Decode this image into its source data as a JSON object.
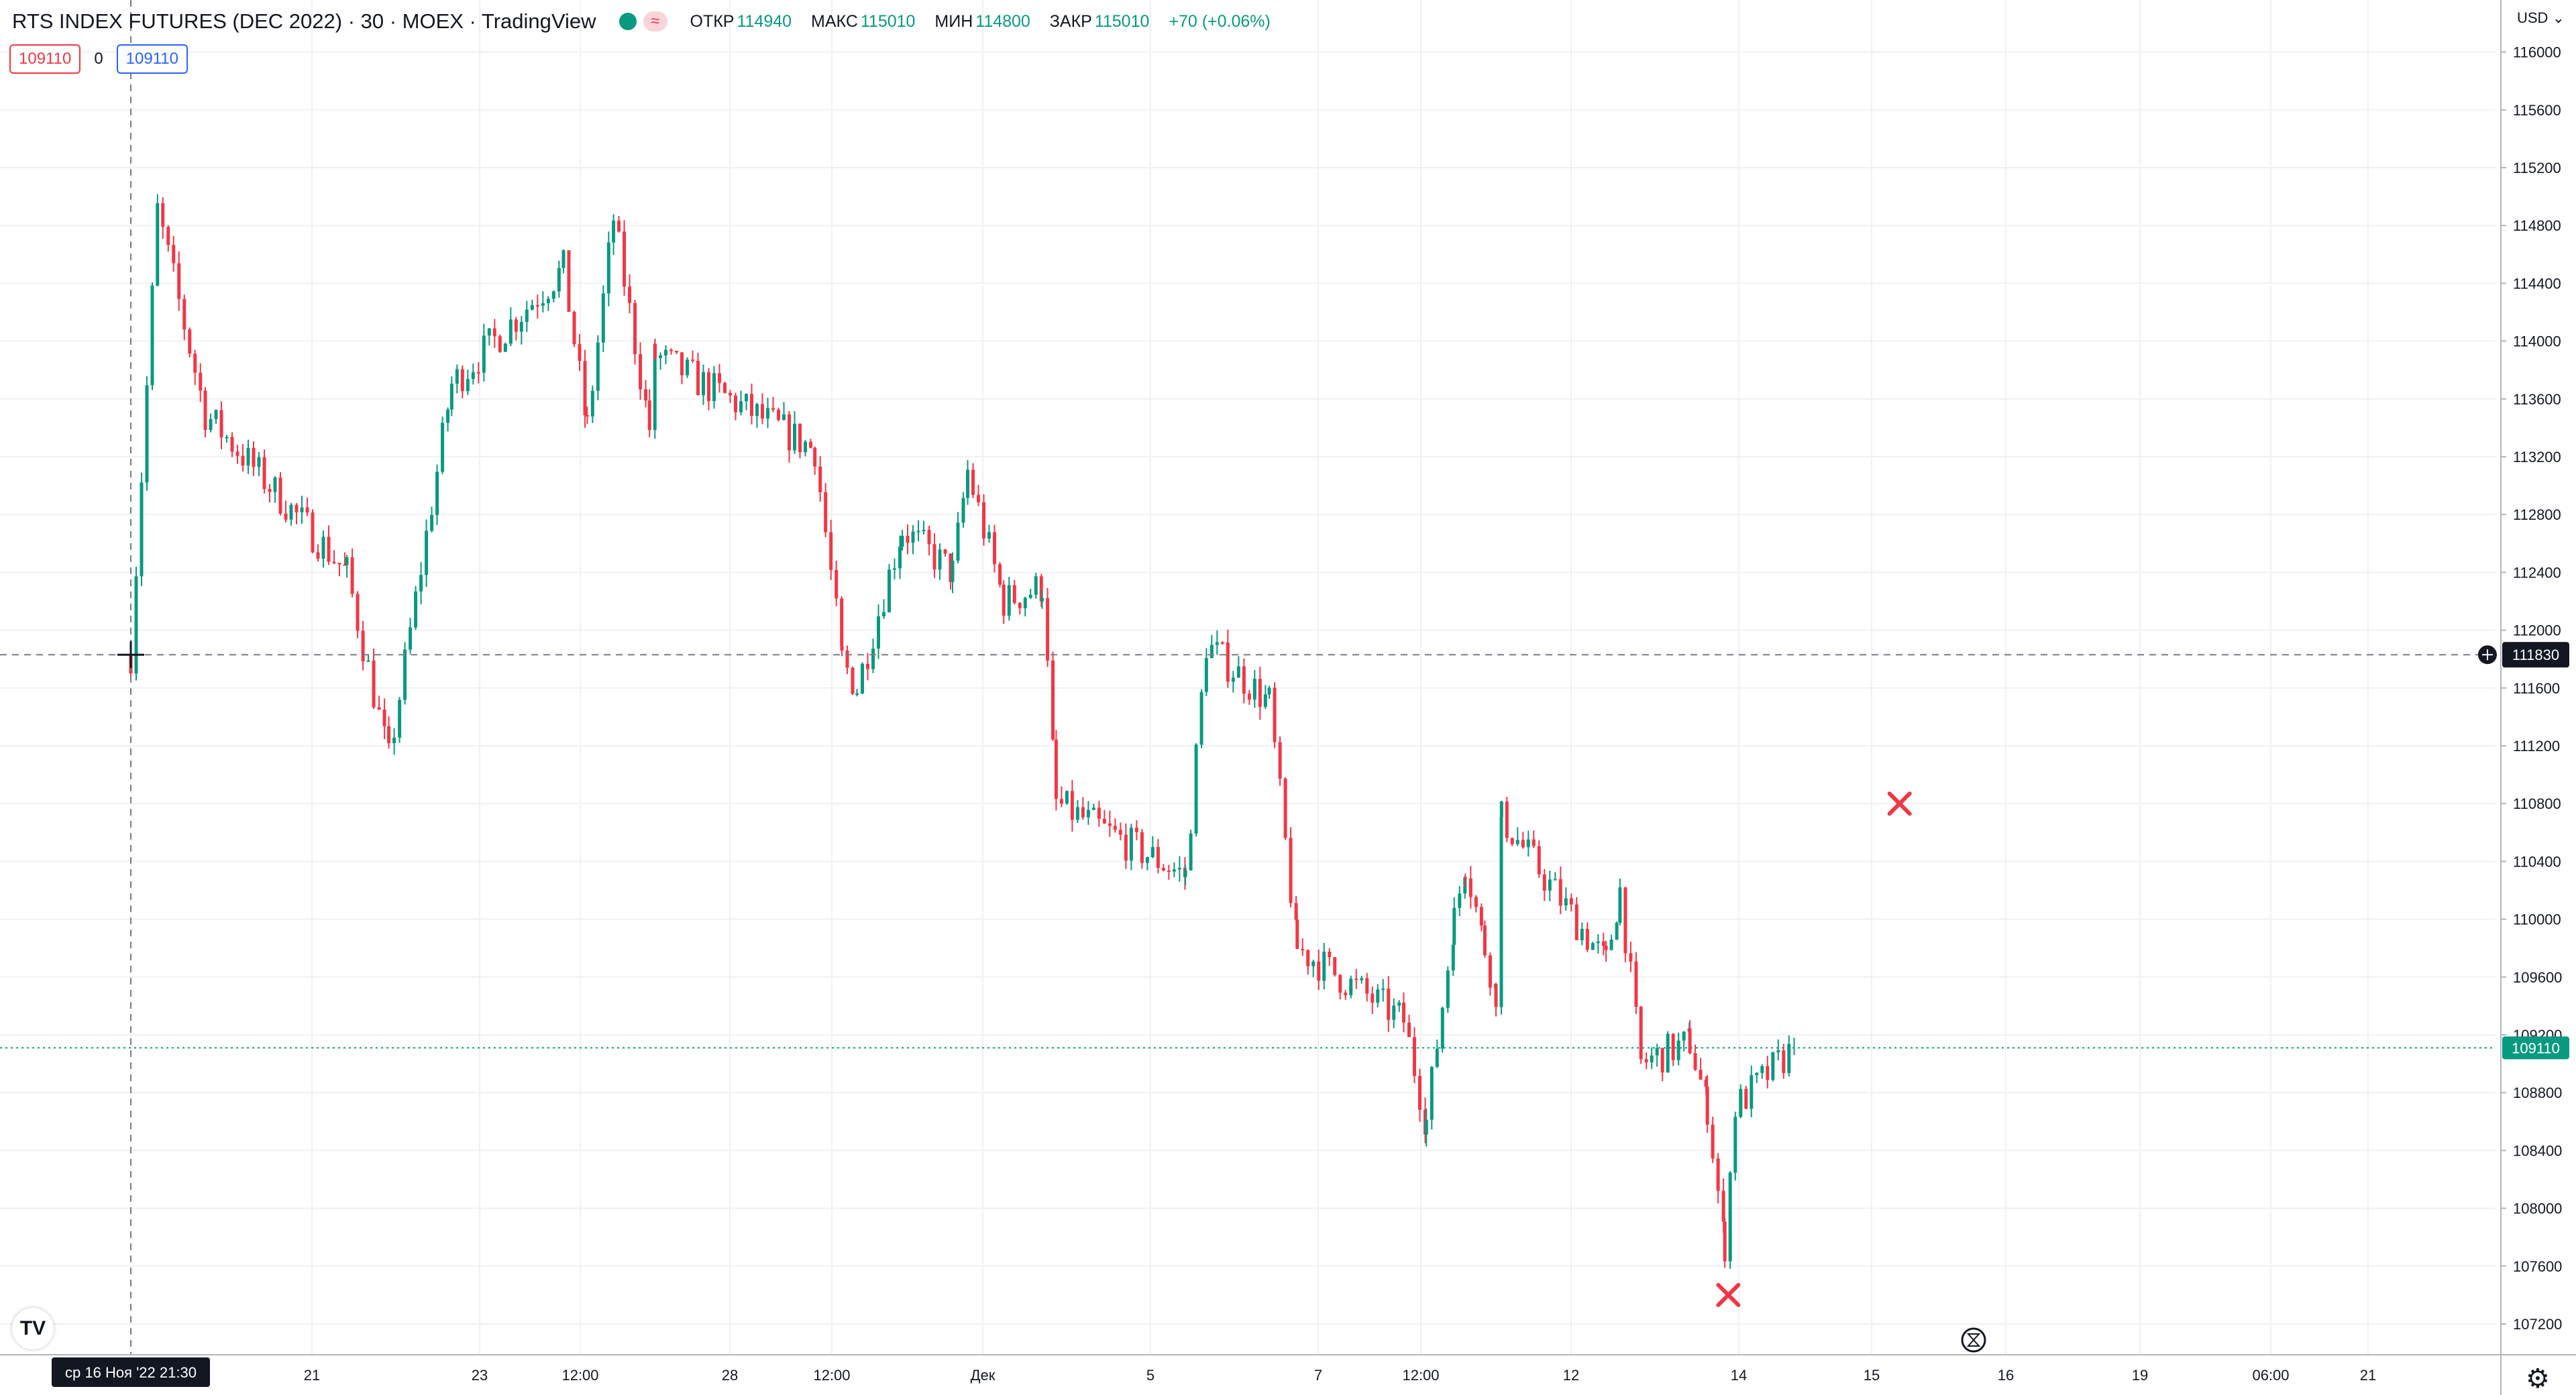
{
  "header": {
    "title": "RTS INDEX FUTURES (DEC 2022) · 30 · MOEX · TradingView",
    "compare_glyph": "≈",
    "ohlc": [
      {
        "label": "ОТКР",
        "value": "114940"
      },
      {
        "label": "МАКС",
        "value": "115010"
      },
      {
        "label": "МИН",
        "value": "114800"
      },
      {
        "label": "ЗАКР",
        "value": "115010"
      }
    ],
    "change": "+70 (+0.06%)"
  },
  "trade": {
    "sell": "109110",
    "spread": "0",
    "buy": "109110"
  },
  "currency": "USD",
  "logo_text": "TV",
  "colors": {
    "up": "#089981",
    "down": "#f23645",
    "grid": "#eef0f3",
    "axis_text": "#131722",
    "scale_bg": "#131722"
  },
  "chart_data": {
    "type": "candlestick",
    "title": "RTS INDEX FUTURES (DEC 2022)",
    "interval": "30",
    "exchange": "MOEX",
    "currency": "USD",
    "ylim": [
      107000,
      116200
    ],
    "y_ticks": [
      "107200",
      "107600",
      "108000",
      "108400",
      "108800",
      "109200",
      "109600",
      "110000",
      "110400",
      "110800",
      "111200",
      "111600",
      "112000",
      "112400",
      "112800",
      "113200",
      "113600",
      "114000",
      "114400",
      "114800",
      "115200",
      "115600",
      "116000"
    ],
    "x_ticks": [
      "21",
      "23",
      "12:00",
      "28",
      "12:00",
      "Дек",
      "5",
      "7",
      "12:00",
      "12",
      "14",
      "15",
      "16",
      "19",
      "06:00",
      "21"
    ],
    "time_cursor_label": "ср 16 Ноя '22   21:30",
    "crosshair_price": "111830",
    "last_price": "109110",
    "grid": true,
    "price_path": [
      {
        "date": "2022-11-16 21:30",
        "price": 111830
      },
      {
        "date": "2022-11-17 12:00",
        "price": 114900
      },
      {
        "date": "2022-11-18 14:00",
        "price": 113500
      },
      {
        "date": "2022-11-21 10:00",
        "price": 112400
      },
      {
        "date": "2022-11-21 22:00",
        "price": 111100
      },
      {
        "date": "2022-11-22 16:00",
        "price": 113700
      },
      {
        "date": "2022-11-23 10:00",
        "price": 114500
      },
      {
        "date": "2022-11-23 17:00",
        "price": 113400
      },
      {
        "date": "2022-11-24 12:00",
        "price": 114850
      },
      {
        "date": "2022-11-25 14:00",
        "price": 113400
      },
      {
        "date": "2022-11-25 18:00",
        "price": 113900
      },
      {
        "date": "2022-11-28 10:00",
        "price": 113250
      },
      {
        "date": "2022-11-28 16:00",
        "price": 111800
      },
      {
        "date": "2022-11-28 22:00",
        "price": 111600
      },
      {
        "date": "2022-11-29 16:00",
        "price": 112700
      },
      {
        "date": "2022-11-30 12:00",
        "price": 112400
      },
      {
        "date": "2022-11-30 18:00",
        "price": 113100
      },
      {
        "date": "2022-12-01 12:00",
        "price": 112200
      },
      {
        "date": "2022-12-02 10:00",
        "price": 112300
      },
      {
        "date": "2022-12-02 18:00",
        "price": 110800
      },
      {
        "date": "2022-12-05 10:00",
        "price": 110300
      },
      {
        "date": "2022-12-05 16:00",
        "price": 111900
      },
      {
        "date": "2022-12-06 10:00",
        "price": 111500
      },
      {
        "date": "2022-12-06 18:00",
        "price": 109800
      },
      {
        "date": "2022-12-07 10:00",
        "price": 109300
      },
      {
        "date": "2022-12-07 16:00",
        "price": 108600
      },
      {
        "date": "2022-12-08 12:00",
        "price": 110000
      },
      {
        "date": "2022-12-08 20:00",
        "price": 110400
      },
      {
        "date": "2022-12-09 10:00",
        "price": 109800
      },
      {
        "date": "2022-12-09 18:00",
        "price": 109500
      },
      {
        "date": "2022-12-09 22:00",
        "price": 110700
      },
      {
        "date": "2022-12-12 10:00",
        "price": 109700
      },
      {
        "date": "2022-12-12 14:00",
        "price": 110200
      },
      {
        "date": "2022-12-12 20:00",
        "price": 109000
      },
      {
        "date": "2022-12-13 10:00",
        "price": 109150
      },
      {
        "date": "2022-12-13 15:00",
        "price": 108700
      },
      {
        "date": "2022-12-13 20:00",
        "price": 107750
      },
      {
        "date": "2022-12-13 23:00",
        "price": 108700
      },
      {
        "date": "2022-12-14 10:00",
        "price": 109110
      }
    ],
    "markers": [
      {
        "symbol": "x",
        "date": "2022-12-15 05:00",
        "price": 110800
      },
      {
        "symbol": "x",
        "date": "2022-12-13 21:00",
        "price": 107400
      }
    ]
  }
}
